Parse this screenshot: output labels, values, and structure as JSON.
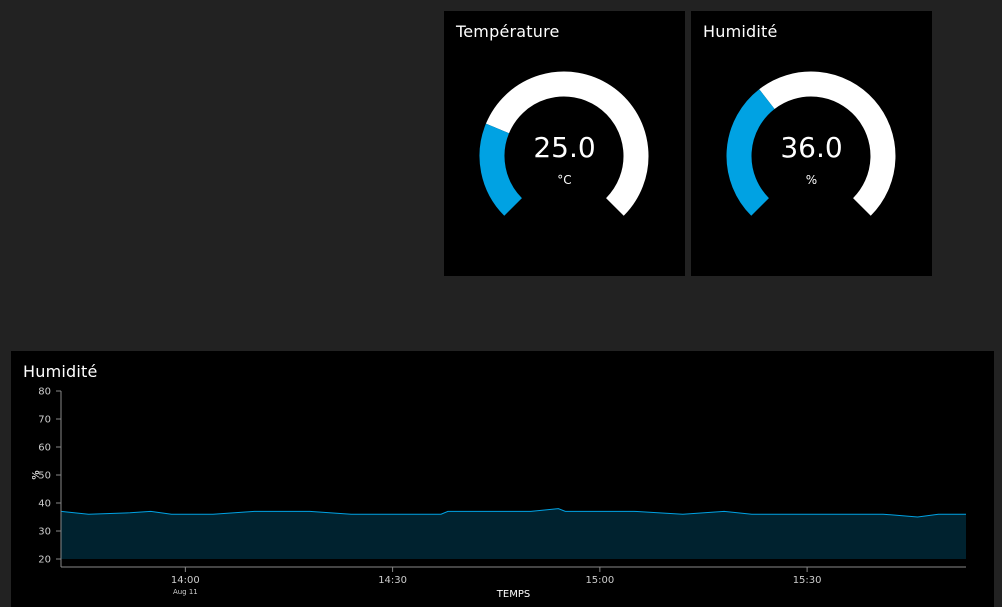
{
  "gauges": {
    "temperature": {
      "title": "Température",
      "value": "25.0",
      "unit": "°C",
      "min": 0,
      "max": 100,
      "fill_fraction": 0.25
    },
    "humidity": {
      "title": "Humidité",
      "value": "36.0",
      "unit": "%",
      "min": 0,
      "max": 100,
      "fill_fraction": 0.36
    }
  },
  "colors": {
    "background": "#222222",
    "card": "#000000",
    "accent": "#00a2e3",
    "track": "#ffffff",
    "area_fill": "#00222f",
    "axis": "#888888",
    "text": "#ffffff"
  },
  "chart_data": {
    "type": "area",
    "title": "Humidité",
    "xlabel": "TEMPS",
    "ylabel": "%",
    "ylim": [
      20,
      80
    ],
    "yticks": [
      20,
      30,
      40,
      50,
      60,
      70,
      80
    ],
    "xticks": [
      {
        "t": "14:00",
        "label": "14:00",
        "sublabel": "Aug 11"
      },
      {
        "t": "14:30",
        "label": "14:30",
        "sublabel": ""
      },
      {
        "t": "15:00",
        "label": "15:00",
        "sublabel": ""
      },
      {
        "t": "15:30",
        "label": "15:30",
        "sublabel": ""
      }
    ],
    "xlim": [
      "13:42",
      "15:53"
    ],
    "grid": false,
    "series": [
      {
        "points": [
          [
            "13:42",
            37.0
          ],
          [
            "13:46",
            36.0
          ],
          [
            "13:52",
            36.5
          ],
          [
            "13:55",
            37.0
          ],
          [
            "13:58",
            36.0
          ],
          [
            "14:04",
            36.0
          ],
          [
            "14:10",
            37.0
          ],
          [
            "14:18",
            37.0
          ],
          [
            "14:24",
            36.0
          ],
          [
            "14:30",
            36.0
          ],
          [
            "14:37",
            36.0
          ],
          [
            "14:38",
            37.0
          ],
          [
            "14:45",
            37.0
          ],
          [
            "14:50",
            37.0
          ],
          [
            "14:54",
            38.0
          ],
          [
            "14:55",
            37.0
          ],
          [
            "15:05",
            37.0
          ],
          [
            "15:12",
            36.0
          ],
          [
            "15:18",
            37.0
          ],
          [
            "15:22",
            36.0
          ],
          [
            "15:30",
            36.0
          ],
          [
            "15:41",
            36.0
          ],
          [
            "15:46",
            35.0
          ],
          [
            "15:49",
            36.0
          ],
          [
            "15:53",
            36.0
          ]
        ]
      }
    ]
  }
}
